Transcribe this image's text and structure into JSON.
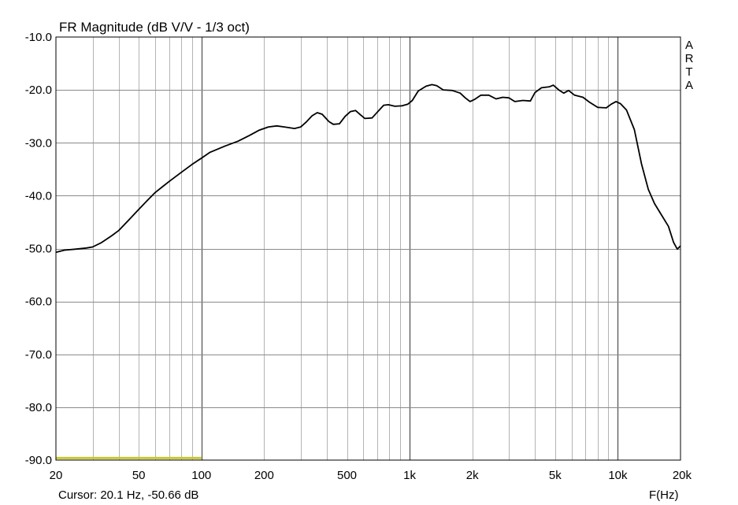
{
  "chart_data": {
    "type": "line",
    "title": "FR Magnitude (dB V/V - 1/3 oct)",
    "watermark": "ARTA",
    "xlabel": "F(Hz)",
    "ylabel": "",
    "x_scale": "log",
    "xlim": [
      20,
      20000
    ],
    "ylim": [
      -90,
      -10
    ],
    "grid": true,
    "x_ticks": [
      {
        "value": 20,
        "label": "20"
      },
      {
        "value": 50,
        "label": "50"
      },
      {
        "value": 100,
        "label": "100"
      },
      {
        "value": 200,
        "label": "200"
      },
      {
        "value": 500,
        "label": "500"
      },
      {
        "value": 1000,
        "label": "1k"
      },
      {
        "value": 2000,
        "label": "2k"
      },
      {
        "value": 5000,
        "label": "5k"
      },
      {
        "value": 10000,
        "label": "10k"
      },
      {
        "value": 20000,
        "label": "20k"
      }
    ],
    "y_ticks": [
      {
        "value": -10,
        "label": "-10.0"
      },
      {
        "value": -20,
        "label": "-20.0"
      },
      {
        "value": -30,
        "label": "-30.0"
      },
      {
        "value": -40,
        "label": "-40.0"
      },
      {
        "value": -50,
        "label": "-50.0"
      },
      {
        "value": -60,
        "label": "-60.0"
      },
      {
        "value": -70,
        "label": "-70.0"
      },
      {
        "value": -80,
        "label": "-80.0"
      },
      {
        "value": -90,
        "label": "-90.0"
      }
    ],
    "cursor_text": "Cursor: 20.1 Hz, -50.66 dB",
    "series": [
      {
        "color": "#000000",
        "points": [
          [
            20,
            -50.7
          ],
          [
            22,
            -50.3
          ],
          [
            25,
            -50.1
          ],
          [
            28,
            -49.9
          ],
          [
            30,
            -49.7
          ],
          [
            33,
            -48.9
          ],
          [
            37,
            -47.6
          ],
          [
            40,
            -46.6
          ],
          [
            45,
            -44.5
          ],
          [
            50,
            -42.6
          ],
          [
            55,
            -40.9
          ],
          [
            60,
            -39.4
          ],
          [
            65,
            -38.3
          ],
          [
            70,
            -37.3
          ],
          [
            80,
            -35.6
          ],
          [
            90,
            -34.1
          ],
          [
            100,
            -32.9
          ],
          [
            110,
            -31.8
          ],
          [
            130,
            -30.6
          ],
          [
            150,
            -29.7
          ],
          [
            170,
            -28.6
          ],
          [
            190,
            -27.6
          ],
          [
            210,
            -27.0
          ],
          [
            230,
            -26.8
          ],
          [
            250,
            -27.0
          ],
          [
            280,
            -27.3
          ],
          [
            300,
            -27.0
          ],
          [
            320,
            -26.0
          ],
          [
            340,
            -24.9
          ],
          [
            360,
            -24.3
          ],
          [
            380,
            -24.6
          ],
          [
            410,
            -26.0
          ],
          [
            430,
            -26.5
          ],
          [
            460,
            -26.4
          ],
          [
            490,
            -25.0
          ],
          [
            520,
            -24.1
          ],
          [
            550,
            -23.9
          ],
          [
            580,
            -24.7
          ],
          [
            610,
            -25.4
          ],
          [
            660,
            -25.3
          ],
          [
            700,
            -24.2
          ],
          [
            750,
            -22.9
          ],
          [
            790,
            -22.8
          ],
          [
            850,
            -23.1
          ],
          [
            920,
            -23.0
          ],
          [
            980,
            -22.7
          ],
          [
            1030,
            -22.0
          ],
          [
            1100,
            -20.2
          ],
          [
            1200,
            -19.3
          ],
          [
            1280,
            -19.0
          ],
          [
            1350,
            -19.2
          ],
          [
            1450,
            -20.0
          ],
          [
            1600,
            -20.1
          ],
          [
            1750,
            -20.6
          ],
          [
            1850,
            -21.5
          ],
          [
            1950,
            -22.2
          ],
          [
            2050,
            -21.8
          ],
          [
            2200,
            -21.0
          ],
          [
            2400,
            -21.0
          ],
          [
            2600,
            -21.7
          ],
          [
            2800,
            -21.4
          ],
          [
            3000,
            -21.5
          ],
          [
            3200,
            -22.2
          ],
          [
            3500,
            -22.0
          ],
          [
            3800,
            -22.1
          ],
          [
            4000,
            -20.5
          ],
          [
            4300,
            -19.6
          ],
          [
            4700,
            -19.4
          ],
          [
            4900,
            -19.1
          ],
          [
            5200,
            -20.0
          ],
          [
            5500,
            -20.6
          ],
          [
            5800,
            -20.1
          ],
          [
            6200,
            -21.0
          ],
          [
            6800,
            -21.4
          ],
          [
            7300,
            -22.3
          ],
          [
            8000,
            -23.3
          ],
          [
            8800,
            -23.4
          ],
          [
            9300,
            -22.7
          ],
          [
            9800,
            -22.2
          ],
          [
            10300,
            -22.6
          ],
          [
            11000,
            -23.8
          ],
          [
            12000,
            -27.5
          ],
          [
            13000,
            -34.0
          ],
          [
            14000,
            -38.8
          ],
          [
            15000,
            -41.5
          ],
          [
            16000,
            -43.3
          ],
          [
            17500,
            -45.8
          ],
          [
            18500,
            -48.8
          ],
          [
            19300,
            -50.1
          ],
          [
            20000,
            -49.5
          ]
        ]
      }
    ],
    "reference_line": {
      "color": "#c8c832",
      "x_start": 20,
      "x_end": 100,
      "y": -89.6
    }
  }
}
